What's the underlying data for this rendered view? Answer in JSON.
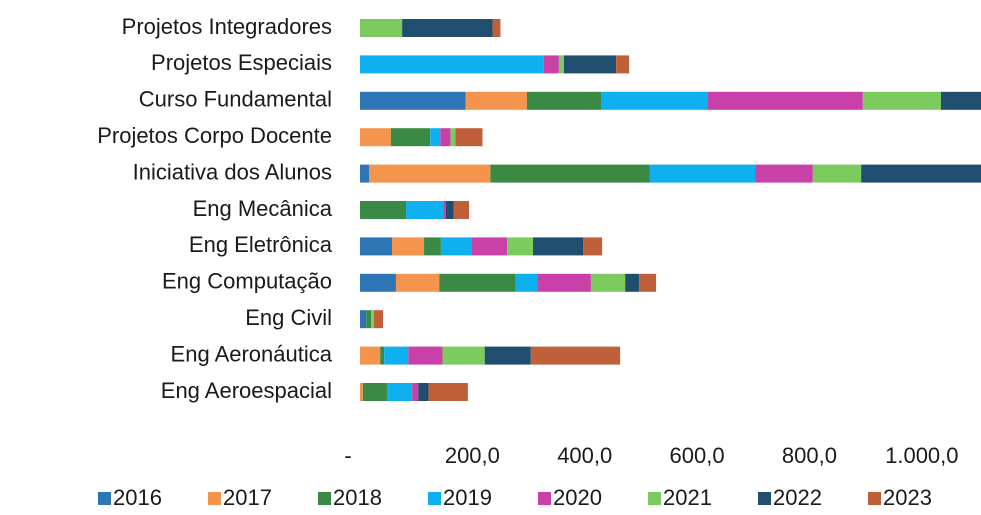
{
  "chart_data": {
    "type": "stacked_barh",
    "categories": [
      "Projetos Integradores",
      "Projetos Especiais",
      "Curso Fundamental",
      "Projetos Corpo Docente",
      "Iniciativa dos Alunos",
      "Eng Mecânica",
      "Eng Eletrônica",
      "Eng Computação",
      "Eng Civil",
      "Eng Aeronáutica",
      "Eng Aeroespacial"
    ],
    "series": [
      {
        "name": "2016",
        "color": "#2e75b6",
        "values": [
          0,
          0,
          188,
          0,
          16,
          0,
          57,
          64,
          11,
          0,
          0
        ]
      },
      {
        "name": "2017",
        "color": "#f4944d",
        "values": [
          0,
          0,
          109,
          55,
          216,
          0,
          57,
          77,
          0,
          36,
          5
        ]
      },
      {
        "name": "2018",
        "color": "#3a8a45",
        "values": [
          0,
          0,
          132,
          70,
          284,
          82,
          30,
          136,
          9,
          7,
          43
        ]
      },
      {
        "name": "2019",
        "color": "#0eb0f0",
        "values": [
          0,
          327,
          189,
          18,
          188,
          66,
          54,
          39,
          0,
          43,
          45
        ]
      },
      {
        "name": "2020",
        "color": "#c940a8",
        "values": [
          0,
          27,
          277,
          18,
          102,
          5,
          64,
          95,
          0,
          61,
          11
        ]
      },
      {
        "name": "2021",
        "color": "#7ccb5e",
        "values": [
          75,
          9,
          139,
          9,
          86,
          0,
          46,
          61,
          5,
          75,
          0
        ]
      },
      {
        "name": "2022",
        "color": "#1f4e6e",
        "values": [
          161,
          93,
          73,
          0,
          216,
          14,
          89,
          25,
          0,
          82,
          18
        ]
      },
      {
        "name": "2023",
        "color": "#c0603a",
        "values": [
          14,
          23,
          0,
          48,
          0,
          27,
          34,
          30,
          16,
          159,
          70
        ]
      }
    ],
    "xlim": [
      0,
      1100
    ],
    "xticks": [
      {
        "value": 0,
        "label": "-"
      },
      {
        "value": 200,
        "label": "200,0"
      },
      {
        "value": 400,
        "label": "400,0"
      },
      {
        "value": 600,
        "label": "600,0"
      },
      {
        "value": 800,
        "label": "800,0"
      },
      {
        "value": 1000,
        "label": "1.000,0"
      }
    ],
    "legend": "bottom"
  }
}
